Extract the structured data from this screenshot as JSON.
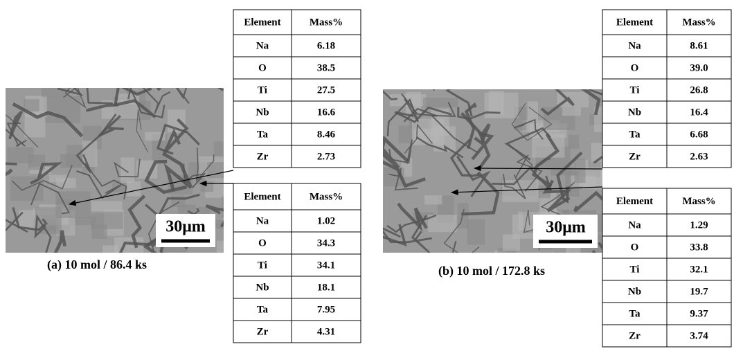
{
  "panels": [
    {
      "caption": "(a) 10 mol / 86.4 ks",
      "scale_label": "30μm",
      "tables": [
        {
          "header": [
            "Element",
            "Mass%"
          ],
          "rows": [
            [
              "Na",
              "6.18"
            ],
            [
              "O",
              "38.5"
            ],
            [
              "Ti",
              "27.5"
            ],
            [
              "Nb",
              "16.6"
            ],
            [
              "Ta",
              "8.46"
            ],
            [
              "Zr",
              "2.73"
            ]
          ]
        },
        {
          "header": [
            "Element",
            "Mass%"
          ],
          "rows": [
            [
              "Na",
              "1.02"
            ],
            [
              "O",
              "34.3"
            ],
            [
              "Ti",
              "34.1"
            ],
            [
              "Nb",
              "18.1"
            ],
            [
              "Ta",
              "7.95"
            ],
            [
              "Zr",
              "4.31"
            ]
          ]
        }
      ]
    },
    {
      "caption": "(b) 10 mol / 172.8 ks",
      "scale_label": "30μm",
      "tables": [
        {
          "header": [
            "Element",
            "Mass%"
          ],
          "rows": [
            [
              "Na",
              "8.61"
            ],
            [
              "O",
              "39.0"
            ],
            [
              "Ti",
              "26.8"
            ],
            [
              "Nb",
              "16.4"
            ],
            [
              "Ta",
              "6.68"
            ],
            [
              "Zr",
              "2.63"
            ]
          ]
        },
        {
          "header": [
            "Element",
            "Mass%"
          ],
          "rows": [
            [
              "Na",
              "1.29"
            ],
            [
              "O",
              "33.8"
            ],
            [
              "Ti",
              "32.1"
            ],
            [
              "Nb",
              "19.7"
            ],
            [
              "Ta",
              "9.37"
            ],
            [
              "Zr",
              "3.74"
            ]
          ]
        }
      ]
    }
  ]
}
